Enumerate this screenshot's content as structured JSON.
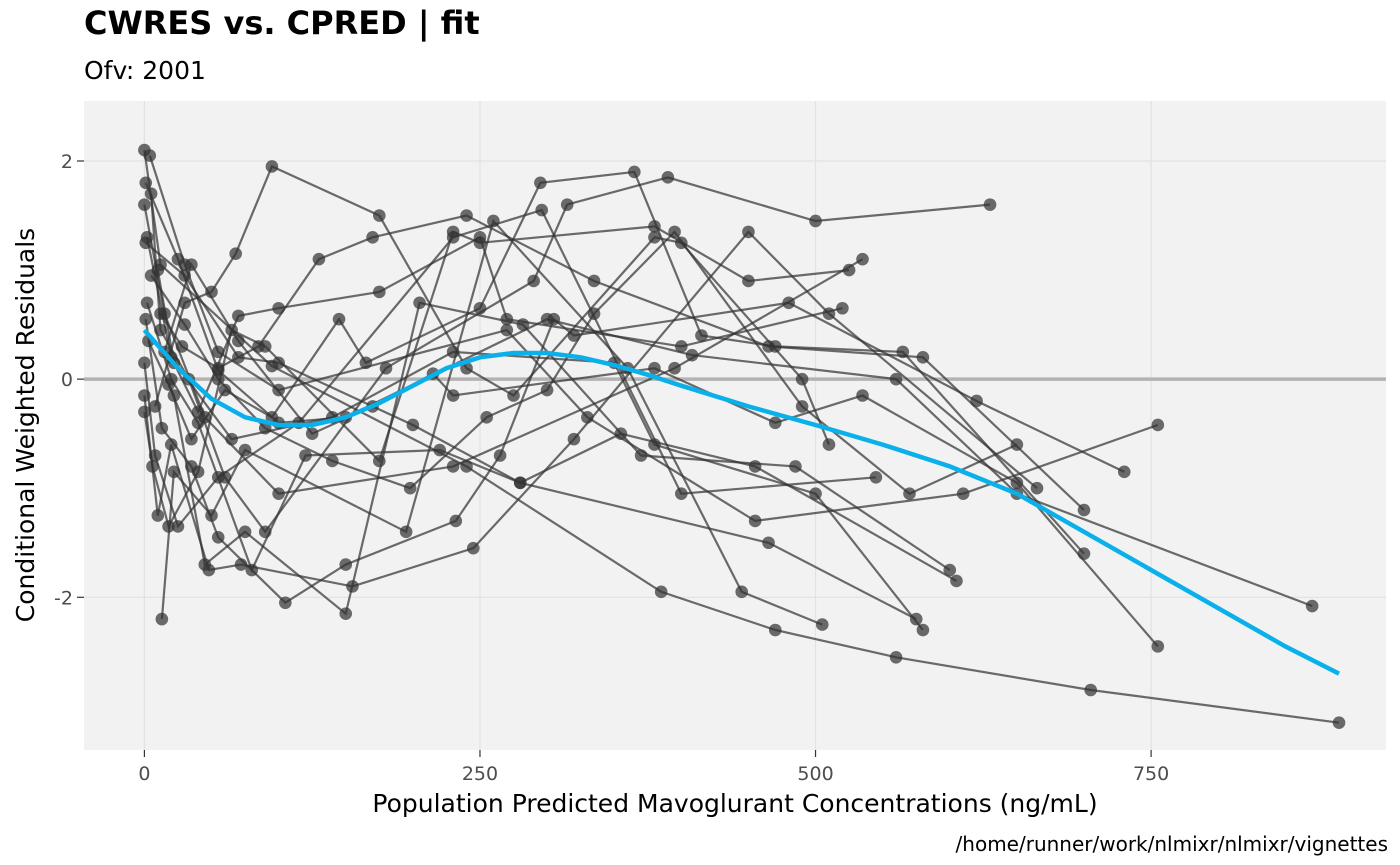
{
  "title": "CWRES vs. CPRED | fit",
  "subtitle": "Ofv: 2001",
  "caption": "/home/runner/work/nlmixr/nlmixr/vignettes",
  "colors": {
    "panel_bg": "#f2f2f2",
    "grid": "#e2e2e2",
    "points": "#333333",
    "lines": "#333333",
    "smooth": "#0ab0ea",
    "zero_line": "#b3b3b3"
  },
  "chart_data": {
    "type": "scatter",
    "xlabel": "Population Predicted Mavoglurant Concentrations (ng/mL)",
    "ylabel": "Conditional Weighted Residuals",
    "xlim": [
      -45,
      925
    ],
    "ylim": [
      -3.4,
      2.55
    ],
    "x_ticks": [
      0,
      250,
      500,
      750
    ],
    "x_tick_labels": [
      "0",
      "250",
      "500",
      "750"
    ],
    "y_ticks": [
      -2,
      0,
      2
    ],
    "y_tick_labels": [
      "-2",
      "0",
      "2"
    ],
    "grid": true,
    "reference_line_y": 0,
    "subjects": [
      [
        [
          0,
          2.1
        ],
        [
          12,
          1.05
        ],
        [
          95,
          0.12
        ],
        [
          240,
          -0.8
        ],
        [
          385,
          -1.95
        ],
        [
          470,
          -2.3
        ],
        [
          560,
          -2.55
        ],
        [
          705,
          -2.85
        ],
        [
          890,
          -3.15
        ]
      ],
      [
        [
          1,
          1.8
        ],
        [
          25,
          1.1
        ],
        [
          55,
          0.08
        ],
        [
          100,
          -0.4
        ],
        [
          150,
          -0.35
        ],
        [
          300,
          0.55
        ],
        [
          408,
          0.22
        ],
        [
          560,
          0.0
        ],
        [
          650,
          -1.05
        ],
        [
          870,
          -2.08
        ]
      ],
      [
        [
          2,
          1.3
        ],
        [
          20,
          0.2
        ],
        [
          65,
          -0.55
        ],
        [
          140,
          -0.35
        ],
        [
          230,
          0.25
        ],
        [
          350,
          0.15
        ],
        [
          380,
          -0.6
        ],
        [
          500,
          -1.05
        ],
        [
          580,
          -2.3
        ]
      ],
      [
        [
          1,
          1.25
        ],
        [
          30,
          0.95
        ],
        [
          70,
          0.2
        ],
        [
          100,
          0.15
        ],
        [
          200,
          -0.42
        ],
        [
          280,
          -0.95
        ],
        [
          465,
          -1.5
        ],
        [
          575,
          -2.2
        ]
      ],
      [
        [
          4,
          2.05
        ],
        [
          30,
          1.05
        ],
        [
          55,
          0.25
        ],
        [
          100,
          -0.1
        ],
        [
          270,
          0.45
        ],
        [
          330,
          -0.35
        ],
        [
          455,
          -1.3
        ],
        [
          610,
          -1.05
        ],
        [
          755,
          -0.42
        ]
      ],
      [
        [
          0,
          1.6
        ],
        [
          15,
          0.6
        ],
        [
          45,
          -0.35
        ],
        [
          100,
          -1.05
        ],
        [
          230,
          -0.8
        ],
        [
          395,
          0.1
        ],
        [
          535,
          1.1
        ]
      ],
      [
        [
          5,
          1.7
        ],
        [
          12,
          0.45
        ],
        [
          33,
          0.0
        ],
        [
          60,
          -0.9
        ],
        [
          90,
          -1.4
        ],
        [
          180,
          0.1
        ],
        [
          290,
          0.9
        ],
        [
          315,
          1.6
        ],
        [
          390,
          1.85
        ],
        [
          500,
          1.45
        ],
        [
          630,
          1.6
        ]
      ],
      [
        [
          10,
          1.0
        ],
        [
          22,
          0.15
        ],
        [
          40,
          -0.3
        ],
        [
          70,
          0.58
        ],
        [
          100,
          0.65
        ],
        [
          175,
          0.8
        ],
        [
          250,
          1.3
        ],
        [
          270,
          0.55
        ],
        [
          400,
          0.3
        ],
        [
          520,
          0.65
        ]
      ],
      [
        [
          2,
          0.7
        ],
        [
          20,
          0.0
        ],
        [
          40,
          -0.4
        ],
        [
          80,
          -1.75
        ],
        [
          120,
          -0.7
        ],
        [
          220,
          -0.65
        ],
        [
          280,
          -0.95
        ],
        [
          355,
          -0.5
        ],
        [
          455,
          -0.8
        ],
        [
          605,
          -1.85
        ]
      ],
      [
        [
          1,
          0.55
        ],
        [
          13,
          -0.45
        ],
        [
          35,
          -0.8
        ],
        [
          55,
          -1.45
        ],
        [
          105,
          -2.05
        ],
        [
          150,
          -1.7
        ],
        [
          232,
          -1.3
        ],
        [
          265,
          -0.7
        ],
        [
          305,
          0.55
        ],
        [
          320,
          0.4
        ],
        [
          480,
          0.7
        ],
        [
          620,
          -0.2
        ],
        [
          730,
          -0.85
        ]
      ],
      [
        [
          3,
          0.35
        ],
        [
          22,
          -0.15
        ],
        [
          45,
          -1.7
        ],
        [
          75,
          -1.4
        ],
        [
          150,
          -2.15
        ],
        [
          205,
          0.7
        ],
        [
          282,
          0.5
        ],
        [
          370,
          -0.7
        ],
        [
          485,
          -0.8
        ],
        [
          600,
          -1.75
        ]
      ],
      [
        [
          0,
          0.15
        ],
        [
          8,
          -0.7
        ],
        [
          25,
          -1.35
        ],
        [
          55,
          -0.9
        ],
        [
          115,
          -0.4
        ],
        [
          230,
          1.3
        ],
        [
          296,
          1.55
        ],
        [
          400,
          -1.05
        ],
        [
          545,
          -0.9
        ]
      ],
      [
        [
          0,
          -0.15
        ],
        [
          10,
          -1.25
        ],
        [
          20,
          -0.6
        ],
        [
          48,
          -1.75
        ],
        [
          72,
          -1.7
        ],
        [
          155,
          -1.9
        ],
        [
          245,
          -1.55
        ],
        [
          320,
          -0.55
        ],
        [
          450,
          1.35
        ],
        [
          510,
          0.6
        ],
        [
          665,
          -1.0
        ]
      ],
      [
        [
          0,
          -0.3
        ],
        [
          6,
          -0.8
        ],
        [
          18,
          -1.35
        ],
        [
          40,
          -0.85
        ],
        [
          65,
          0.45
        ],
        [
          90,
          0.3
        ],
        [
          175,
          -0.75
        ],
        [
          230,
          1.35
        ],
        [
          250,
          1.25
        ],
        [
          380,
          1.4
        ],
        [
          450,
          0.9
        ],
        [
          525,
          1.0
        ]
      ],
      [
        [
          13,
          -2.2
        ],
        [
          22,
          -0.85
        ],
        [
          50,
          -1.25
        ],
        [
          75,
          -0.65
        ],
        [
          195,
          -1.4
        ],
        [
          260,
          1.45
        ],
        [
          360,
          0.1
        ],
        [
          445,
          -1.95
        ],
        [
          505,
          -2.25
        ]
      ],
      [
        [
          5,
          0.95
        ],
        [
          30,
          0.5
        ],
        [
          55,
          0.0
        ],
        [
          90,
          -0.45
        ],
        [
          140,
          -0.75
        ],
        [
          198,
          -1.0
        ],
        [
          255,
          -0.35
        ],
        [
          300,
          -0.1
        ],
        [
          335,
          0.6
        ],
        [
          395,
          1.35
        ],
        [
          490,
          -0.25
        ],
        [
          570,
          -1.05
        ],
        [
          650,
          -0.6
        ]
      ],
      [
        [
          15,
          0.25
        ],
        [
          35,
          1.05
        ],
        [
          70,
          0.35
        ],
        [
          125,
          -0.5
        ],
        [
          170,
          -0.25
        ],
        [
          215,
          0.05
        ],
        [
          230,
          -0.15
        ],
        [
          380,
          0.1
        ],
        [
          470,
          -0.4
        ],
        [
          535,
          -0.15
        ],
        [
          650,
          -0.95
        ],
        [
          755,
          -2.45
        ]
      ],
      [
        [
          8,
          -0.25
        ],
        [
          30,
          0.7
        ],
        [
          50,
          0.8
        ],
        [
          68,
          1.15
        ],
        [
          95,
          1.95
        ],
        [
          175,
          1.5
        ],
        [
          240,
          0.1
        ],
        [
          275,
          -0.15
        ],
        [
          380,
          1.3
        ],
        [
          400,
          1.25
        ],
        [
          490,
          0.0
        ],
        [
          510,
          -0.6
        ]
      ],
      [
        [
          18,
          -0.05
        ],
        [
          35,
          -0.55
        ],
        [
          60,
          -0.1
        ],
        [
          95,
          -0.35
        ],
        [
          145,
          0.55
        ],
        [
          165,
          0.15
        ],
        [
          250,
          0.65
        ],
        [
          295,
          1.8
        ],
        [
          365,
          1.9
        ],
        [
          415,
          0.4
        ],
        [
          470,
          0.3
        ],
        [
          565,
          0.25
        ],
        [
          700,
          -1.6
        ]
      ],
      [
        [
          12,
          0.6
        ],
        [
          28,
          0.3
        ],
        [
          55,
          0.1
        ],
        [
          85,
          0.3
        ],
        [
          130,
          1.1
        ],
        [
          170,
          1.3
        ],
        [
          240,
          1.5
        ],
        [
          335,
          0.9
        ],
        [
          465,
          0.3
        ],
        [
          580,
          0.2
        ],
        [
          700,
          -1.2
        ]
      ]
    ],
    "smooth": {
      "name": "",
      "x": [
        0,
        25,
        50,
        75,
        100,
        125,
        150,
        175,
        200,
        225,
        250,
        275,
        300,
        325,
        350,
        375,
        400,
        450,
        500,
        550,
        600,
        650,
        700,
        750,
        800,
        850,
        890
      ],
      "y": [
        0.45,
        0.1,
        -0.18,
        -0.35,
        -0.42,
        -0.42,
        -0.35,
        -0.22,
        -0.06,
        0.1,
        0.2,
        0.24,
        0.24,
        0.2,
        0.13,
        0.04,
        -0.06,
        -0.25,
        -0.42,
        -0.6,
        -0.8,
        -1.05,
        -1.4,
        -1.75,
        -2.1,
        -2.45,
        -2.7
      ]
    }
  }
}
